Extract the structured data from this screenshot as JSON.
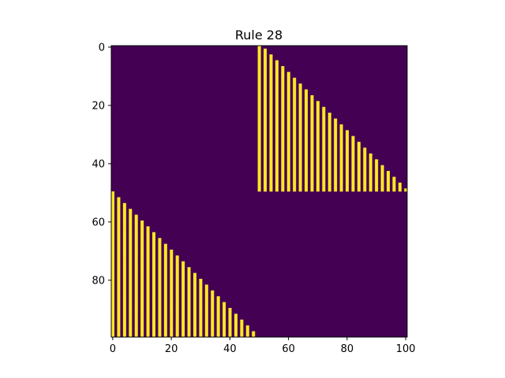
{
  "chart_data": {
    "type": "heatmap",
    "title": "Rule 28",
    "xlabel": "",
    "ylabel": "",
    "grid": false,
    "colormap": "viridis",
    "colors": {
      "zero": "#440154",
      "one": "#fde725"
    },
    "rows": 100,
    "cols": 101,
    "xlim": [
      -0.5,
      100.5
    ],
    "ylim": [
      99.5,
      -0.5
    ],
    "x_ticks": [
      0,
      20,
      40,
      60,
      80,
      100
    ],
    "y_ticks": [
      0,
      20,
      40,
      60,
      80
    ],
    "pattern": {
      "description_rule": "Elementary cellular automaton rule 28 with wrap-around",
      "initial_cell_column": 50,
      "stripe_parity_lower_left": 0,
      "stripe_parity_upper_right": 1
    }
  }
}
